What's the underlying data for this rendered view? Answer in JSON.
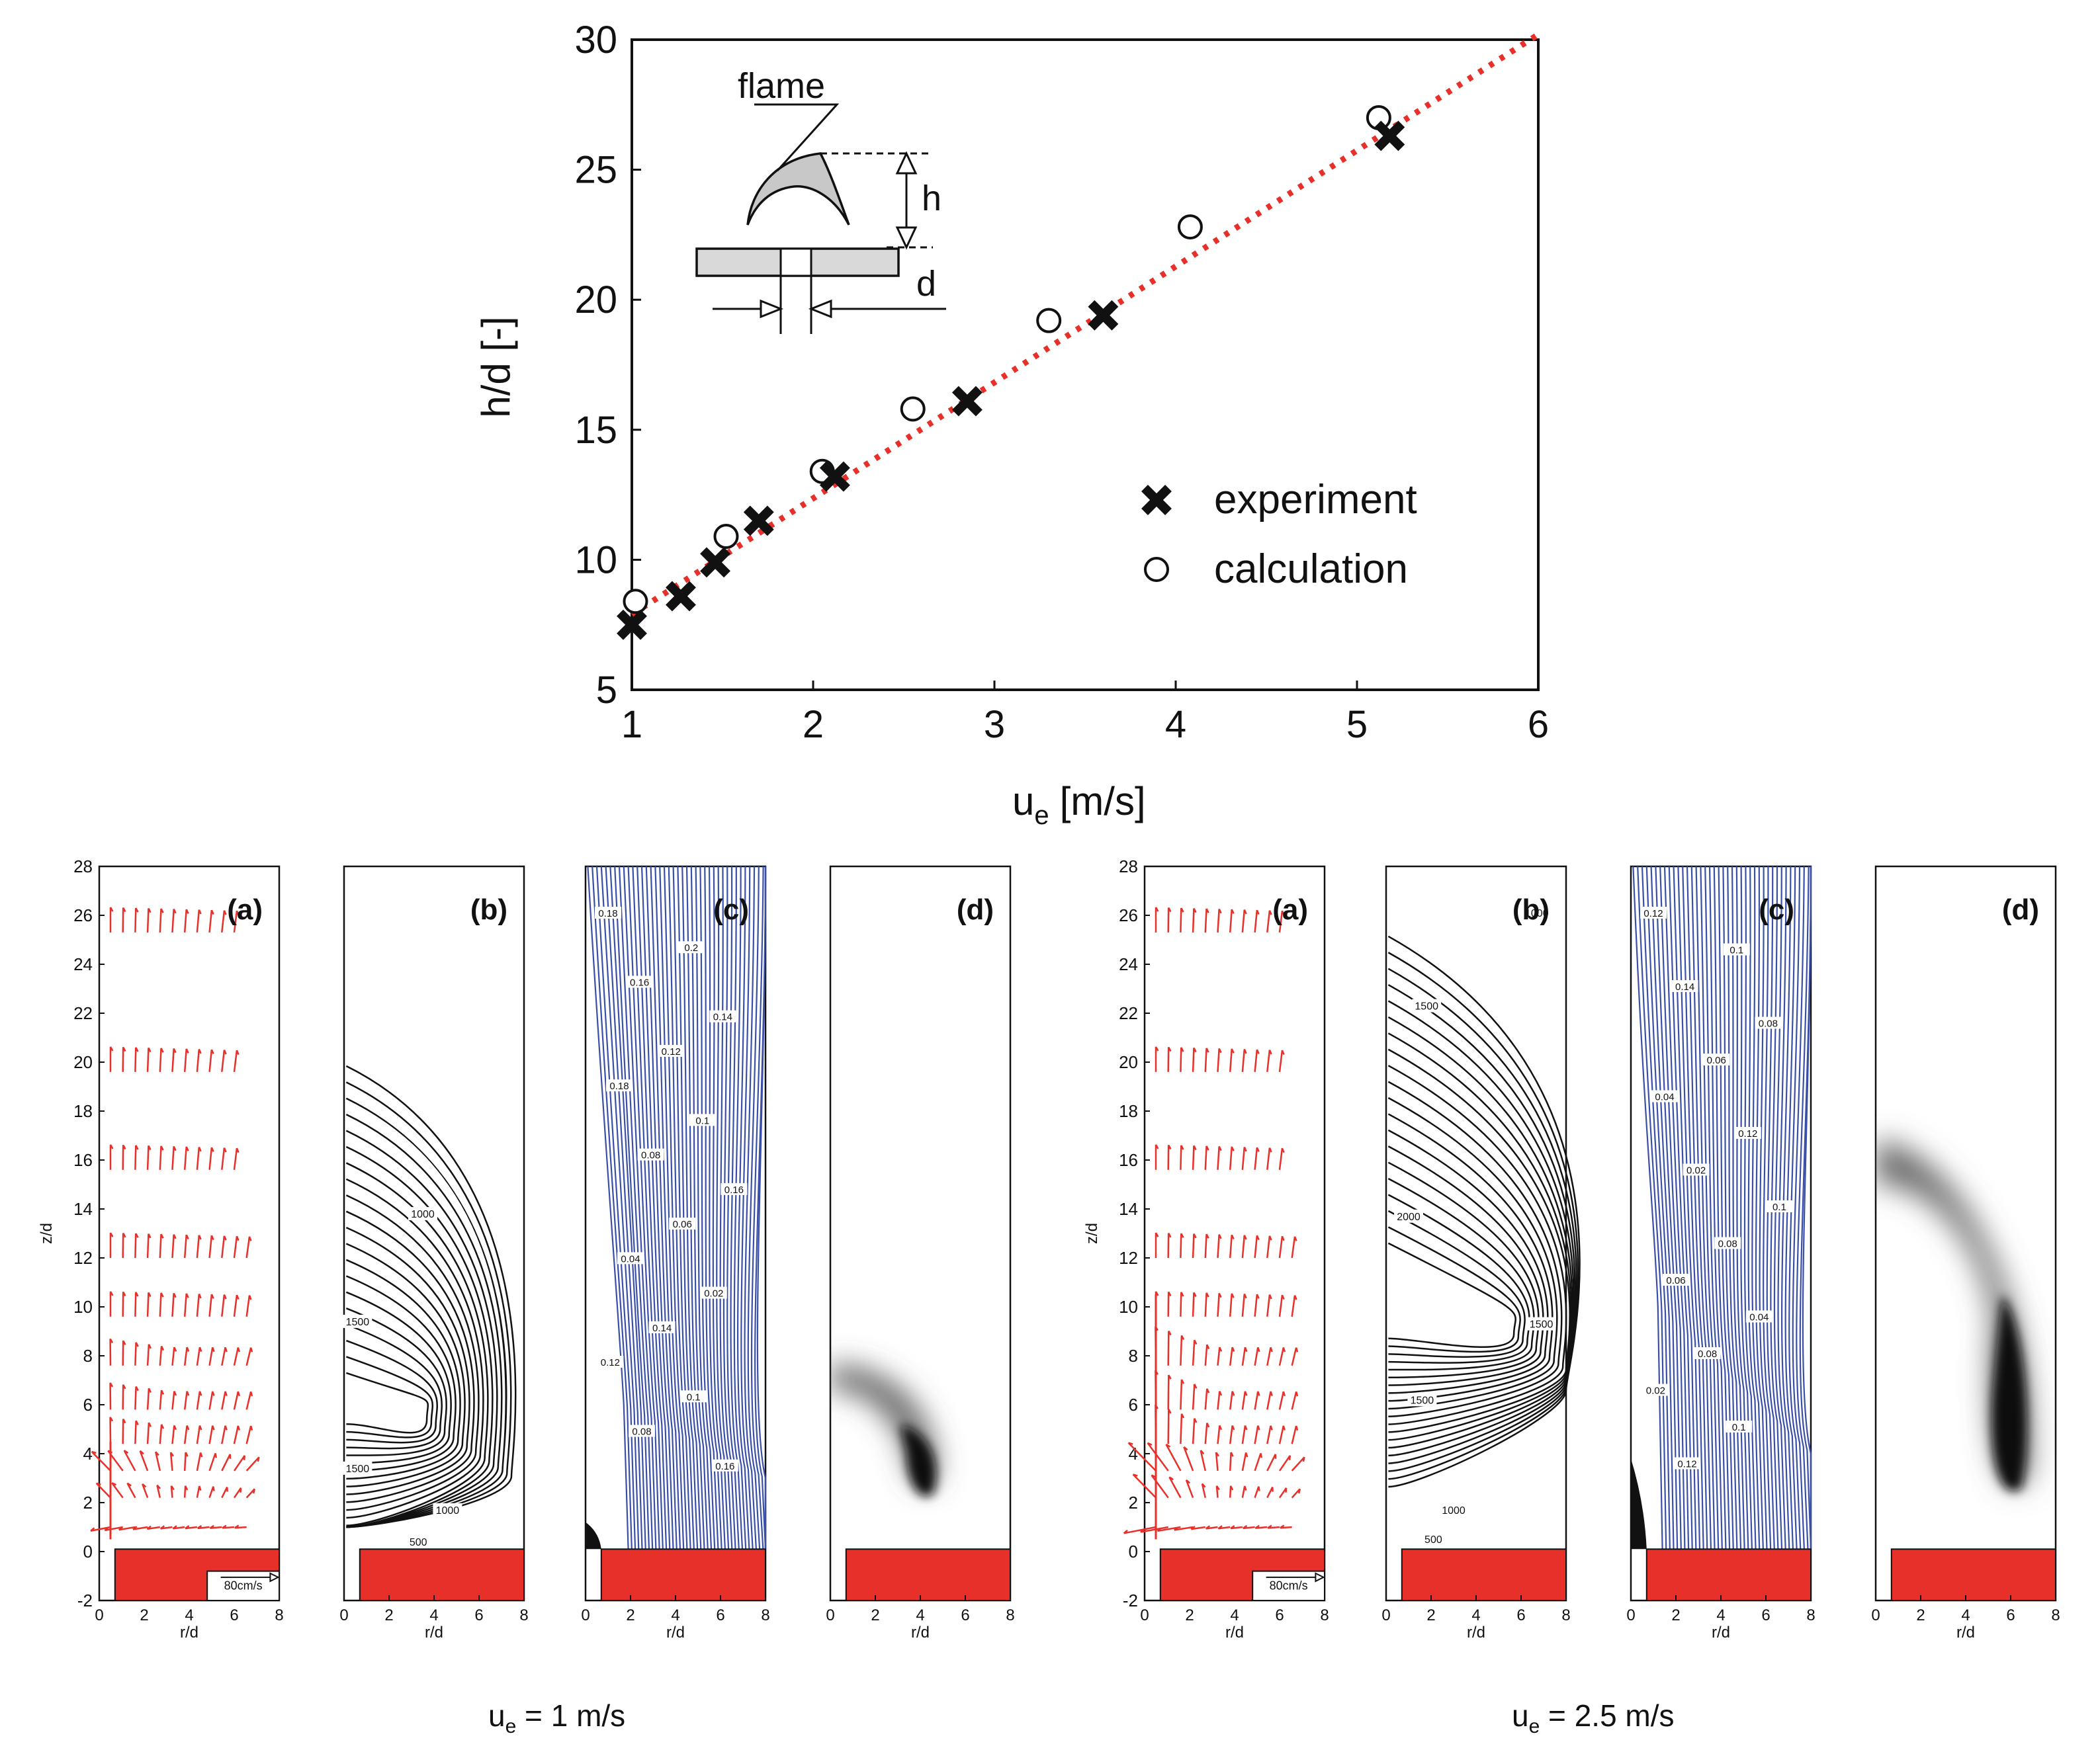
{
  "chart_data": [
    {
      "type": "scatter",
      "title": "",
      "xlabel": "u",
      "xlabel_sub": "e",
      "xlabel_unit": "[m/s]",
      "ylabel": "h/d [-]",
      "xlim": [
        1,
        6
      ],
      "ylim": [
        5,
        30
      ],
      "xticks": [
        "1",
        "2",
        "3",
        "4",
        "5",
        "6"
      ],
      "yticks": [
        "5",
        "10",
        "15",
        "20",
        "25",
        "30"
      ],
      "legend": {
        "position": "bottom-right",
        "entries": [
          "experiment",
          "calculation"
        ]
      },
      "series": [
        {
          "name": "experiment",
          "marker": "x",
          "x": [
            1.0,
            1.27,
            1.46,
            1.7,
            2.12,
            2.85,
            3.6,
            5.18
          ],
          "y": [
            7.5,
            8.6,
            9.9,
            11.5,
            13.2,
            16.1,
            19.4,
            26.3
          ]
        },
        {
          "name": "calculation",
          "marker": "o",
          "x": [
            1.02,
            1.52,
            2.05,
            2.55,
            3.3,
            4.08,
            5.12
          ],
          "y": [
            8.4,
            10.9,
            13.4,
            15.8,
            19.2,
            22.8,
            27.0
          ]
        },
        {
          "name": "fit",
          "marker": "dotted-line",
          "color": "#e8302a",
          "x": [
            1.0,
            6.0
          ],
          "y": [
            7.9,
            30.2
          ]
        }
      ],
      "inset": {
        "labels": [
          "flame",
          "h",
          "d"
        ]
      }
    },
    {
      "type": "contour",
      "description_group": "u_e = 1 m/s",
      "panels": [
        "(a)",
        "(b)",
        "(c)",
        "(d)"
      ],
      "xlabel": "r/d",
      "ylabel": "z/d",
      "xticks": [
        "0",
        "2",
        "4",
        "6",
        "8"
      ],
      "yticks": [
        "-2",
        "0",
        "2",
        "4",
        "6",
        "8",
        "10",
        "12",
        "14",
        "16",
        "18",
        "20",
        "22",
        "24",
        "26",
        "28"
      ],
      "vector_scale_label": "80cm/s",
      "temperature_contour_labels": [
        "1000",
        "1500",
        "1500",
        "1000",
        "500"
      ],
      "mixture_fraction_labels": [
        "0.18",
        "0.2",
        "0.16",
        "0.14",
        "0.12",
        "0.18",
        "0.1",
        "0.08",
        "0.16",
        "0.06",
        "0.04",
        "0.02",
        "0.14",
        "0.12",
        "0.1",
        "0.08",
        "0.16"
      ]
    },
    {
      "type": "contour",
      "description_group": "u_e = 2.5 m/s",
      "panels": [
        "(a)",
        "(b)",
        "(c)",
        "(d)"
      ],
      "xlabel": "r/d",
      "ylabel": "z/d",
      "xticks": [
        "0",
        "2",
        "4",
        "6",
        "8"
      ],
      "yticks": [
        "-2",
        "0",
        "2",
        "4",
        "6",
        "8",
        "10",
        "12",
        "14",
        "16",
        "18",
        "20",
        "22",
        "24",
        "26",
        "28"
      ],
      "vector_scale_label": "80cm/s",
      "temperature_contour_labels": [
        "1000",
        "1500",
        "2000",
        "1500",
        "1500",
        "1000",
        "500"
      ],
      "mixture_fraction_labels": [
        "0.12",
        "0.1",
        "0.14",
        "0.08",
        "0.06",
        "0.04",
        "0.12",
        "0.02",
        "0.1",
        "0.08",
        "0.06",
        "0.04",
        "0.08",
        "0.02",
        "0.1",
        "0.12"
      ]
    }
  ],
  "captions": {
    "left": {
      "u": "u",
      "sub": "e",
      "rest": " = 1 m/s"
    },
    "right": {
      "u": "u",
      "sub": "e",
      "rest": " = 2.5 m/s"
    }
  },
  "colors": {
    "red": "#e8302a",
    "blue": "#3a4fa8",
    "black": "#111111"
  }
}
